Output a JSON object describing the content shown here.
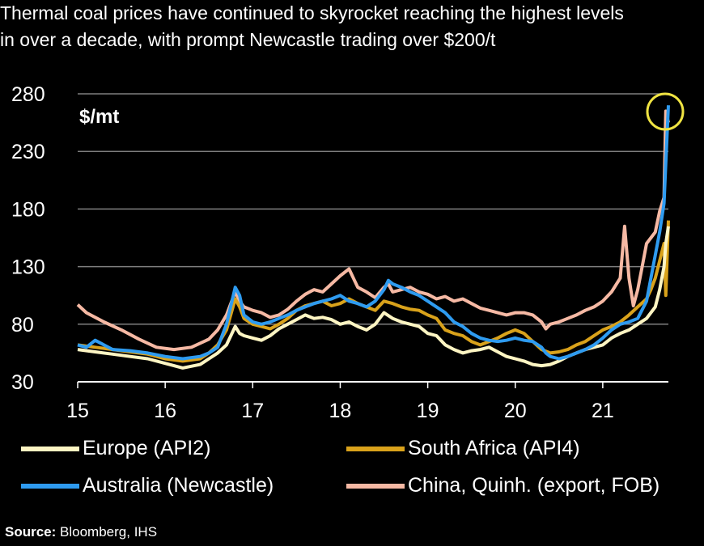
{
  "title_lines": [
    "Thermal coal prices have continued to skyrocket reaching the highest levels",
    "in over a decade, with prompt Newcastle trading over $200/t"
  ],
  "source_label": "Source:",
  "source_text": "Bloomberg, IHS",
  "colors": {
    "background": "#000000",
    "grid": "#7f7f7f",
    "highlight_circle": "#f0e442"
  },
  "chart_data": {
    "type": "line",
    "ylabel": "$/mt",
    "ylim": [
      30,
      280
    ],
    "yticks": [
      30,
      80,
      130,
      180,
      230,
      280
    ],
    "xlim": [
      15,
      21.75
    ],
    "xticks": [
      15,
      16,
      17,
      18,
      19,
      20,
      21
    ],
    "xtick_labels": [
      "15",
      "16",
      "17",
      "18",
      "19",
      "20",
      "21"
    ],
    "grid": "horizontal",
    "legend_position": "bottom",
    "annotation": "yellow circle highlighting the late-2021 peak",
    "series": [
      {
        "name": "China, Quinh. (export, FOB)",
        "color": "#f6b9a4",
        "x": [
          15.0,
          15.1,
          15.3,
          15.5,
          15.7,
          15.9,
          16.1,
          16.3,
          16.5,
          16.6,
          16.7,
          16.8,
          16.85,
          16.9,
          17.0,
          17.1,
          17.2,
          17.3,
          17.4,
          17.5,
          17.6,
          17.7,
          17.8,
          17.9,
          18.0,
          18.1,
          18.15,
          18.2,
          18.3,
          18.4,
          18.5,
          18.55,
          18.6,
          18.7,
          18.8,
          18.9,
          19.0,
          19.1,
          19.2,
          19.3,
          19.4,
          19.5,
          19.6,
          19.7,
          19.8,
          19.9,
          20.0,
          20.1,
          20.2,
          20.3,
          20.35,
          20.4,
          20.5,
          20.6,
          20.7,
          20.8,
          20.9,
          21.0,
          21.1,
          21.2,
          21.25,
          21.3,
          21.35,
          21.4,
          21.45,
          21.5,
          21.55,
          21.6,
          21.65,
          21.7,
          21.72,
          21.75
        ],
        "values": [
          97,
          90,
          82,
          75,
          67,
          60,
          58,
          60,
          67,
          75,
          88,
          108,
          100,
          95,
          92,
          90,
          86,
          88,
          93,
          100,
          106,
          110,
          108,
          115,
          122,
          128,
          120,
          112,
          108,
          103,
          112,
          115,
          108,
          110,
          112,
          108,
          106,
          102,
          104,
          100,
          102,
          98,
          94,
          92,
          90,
          88,
          90,
          90,
          88,
          82,
          76,
          80,
          82,
          85,
          88,
          92,
          95,
          100,
          108,
          120,
          165,
          120,
          96,
          110,
          130,
          150,
          155,
          160,
          178,
          190,
          265,
          255
        ]
      },
      {
        "name": "South Africa (API4)",
        "color": "#d9a21b",
        "x": [
          15.0,
          15.2,
          15.4,
          15.6,
          15.8,
          16.0,
          16.2,
          16.4,
          16.5,
          16.6,
          16.7,
          16.8,
          16.85,
          16.9,
          17.0,
          17.1,
          17.2,
          17.3,
          17.4,
          17.5,
          17.6,
          17.7,
          17.8,
          17.9,
          18.0,
          18.1,
          18.2,
          18.3,
          18.4,
          18.5,
          18.6,
          18.7,
          18.8,
          18.9,
          19.0,
          19.1,
          19.2,
          19.3,
          19.4,
          19.5,
          19.6,
          19.7,
          19.8,
          19.9,
          20.0,
          20.1,
          20.2,
          20.3,
          20.4,
          20.5,
          20.6,
          20.7,
          20.8,
          20.9,
          21.0,
          21.1,
          21.2,
          21.3,
          21.4,
          21.5,
          21.55,
          21.6,
          21.65,
          21.7,
          21.72,
          21.75
        ],
        "values": [
          62,
          60,
          58,
          56,
          54,
          50,
          48,
          50,
          55,
          62,
          75,
          102,
          95,
          85,
          80,
          78,
          76,
          80,
          85,
          92,
          96,
          98,
          100,
          96,
          98,
          102,
          98,
          95,
          92,
          100,
          98,
          95,
          93,
          92,
          88,
          85,
          75,
          72,
          70,
          65,
          62,
          65,
          68,
          72,
          75,
          72,
          65,
          58,
          55,
          56,
          58,
          62,
          65,
          70,
          75,
          78,
          82,
          88,
          95,
          102,
          110,
          120,
          135,
          150,
          105,
          170
        ]
      },
      {
        "name": "Europe (API2)",
        "color": "#fdf5c3",
        "x": [
          15.0,
          15.2,
          15.4,
          15.6,
          15.8,
          16.0,
          16.2,
          16.4,
          16.5,
          16.6,
          16.7,
          16.8,
          16.85,
          16.9,
          17.0,
          17.1,
          17.2,
          17.3,
          17.4,
          17.5,
          17.6,
          17.7,
          17.8,
          17.9,
          18.0,
          18.1,
          18.2,
          18.3,
          18.4,
          18.5,
          18.6,
          18.7,
          18.8,
          18.9,
          19.0,
          19.1,
          19.2,
          19.3,
          19.4,
          19.5,
          19.6,
          19.7,
          19.8,
          19.9,
          20.0,
          20.1,
          20.2,
          20.3,
          20.4,
          20.5,
          20.6,
          20.7,
          20.8,
          20.9,
          21.0,
          21.1,
          21.2,
          21.3,
          21.4,
          21.5,
          21.6,
          21.65,
          21.7,
          21.72,
          21.75
        ],
        "values": [
          58,
          56,
          54,
          52,
          50,
          46,
          42,
          45,
          50,
          55,
          62,
          78,
          72,
          70,
          68,
          66,
          70,
          76,
          80,
          84,
          88,
          85,
          86,
          84,
          80,
          82,
          78,
          75,
          80,
          90,
          85,
          82,
          80,
          78,
          72,
          70,
          62,
          58,
          55,
          57,
          58,
          60,
          56,
          52,
          50,
          48,
          45,
          44,
          45,
          48,
          52,
          55,
          58,
          60,
          62,
          68,
          72,
          75,
          80,
          85,
          95,
          110,
          130,
          150,
          165
        ]
      },
      {
        "name": "Australia (Newcastle)",
        "color": "#2e9bf0",
        "x": [
          15.0,
          15.1,
          15.2,
          15.3,
          15.4,
          15.6,
          15.8,
          16.0,
          16.2,
          16.4,
          16.5,
          16.6,
          16.7,
          16.8,
          16.85,
          16.9,
          17.0,
          17.1,
          17.2,
          17.3,
          17.4,
          17.5,
          17.6,
          17.7,
          17.8,
          17.9,
          18.0,
          18.1,
          18.2,
          18.3,
          18.4,
          18.5,
          18.55,
          18.6,
          18.7,
          18.8,
          18.9,
          19.0,
          19.1,
          19.2,
          19.3,
          19.4,
          19.5,
          19.6,
          19.7,
          19.8,
          19.9,
          20.0,
          20.1,
          20.2,
          20.3,
          20.35,
          20.4,
          20.5,
          20.6,
          20.7,
          20.8,
          20.9,
          21.0,
          21.1,
          21.2,
          21.3,
          21.4,
          21.5,
          21.55,
          21.6,
          21.65,
          21.7,
          21.72,
          21.75
        ],
        "values": [
          62,
          60,
          66,
          62,
          58,
          57,
          55,
          52,
          50,
          52,
          55,
          60,
          80,
          112,
          105,
          88,
          82,
          80,
          82,
          85,
          88,
          92,
          95,
          98,
          100,
          102,
          105,
          100,
          98,
          95,
          100,
          110,
          118,
          115,
          112,
          108,
          105,
          100,
          95,
          90,
          82,
          78,
          72,
          68,
          66,
          65,
          66,
          68,
          66,
          65,
          60,
          55,
          52,
          50,
          52,
          55,
          58,
          62,
          68,
          75,
          80,
          82,
          85,
          100,
          120,
          140,
          160,
          185,
          220,
          270
        ]
      }
    ]
  },
  "legend": [
    {
      "label": "Europe (API2)",
      "color": "#fdf5c3"
    },
    {
      "label": "South Africa (API4)",
      "color": "#d9a21b"
    },
    {
      "label": "Australia (Newcastle)",
      "color": "#2e9bf0"
    },
    {
      "label": "China, Quinh. (export, FOB)",
      "color": "#f6b9a4"
    }
  ]
}
